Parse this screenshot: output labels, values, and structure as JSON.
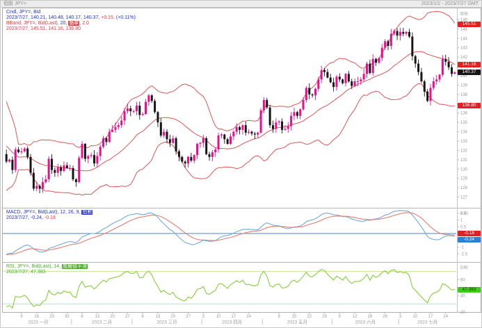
{
  "window": {
    "title_left": "個股 JPY=",
    "title_right": "2023/1/2 - 2023/7/27 GMT"
  },
  "panels": {
    "main": {
      "axis_label": "價格"
    },
    "macd": {
      "axis_label": "自動"
    },
    "rsi": {
      "axis_label": "自動"
    }
  },
  "legend_main": [
    [
      {
        "t": "Cndl, JPY=, Bid",
        "c": "blue"
      }
    ],
    [
      {
        "t": "2023/7/27, 140.21, 140.48, 140.17, 140.37, ",
        "c": "blue"
      },
      {
        "t": "+0.15, ",
        "c": "red"
      },
      {
        "t": "(+0.11%)",
        "c": "blue"
      }
    ],
    [
      {
        "t": "BBand, JPY=, Bid(Last), ",
        "c": "red"
      },
      {
        "t": "20, ",
        "c": "blue"
      },
      {
        "t": "簡單",
        "c": "red",
        "chip": true
      },
      {
        "t": ", 2.0",
        "c": "red"
      }
    ],
    [
      {
        "t": "2023/7/27, 145.51, 141.16, 136.80",
        "c": "red"
      }
    ]
  ],
  "legend_macd": [
    [
      {
        "t": "MACD, JPY=, Bid(Last), 12, 26, 9, ",
        "c": "blue"
      },
      {
        "t": "指數",
        "c": "blue",
        "chip": true
      }
    ],
    [
      {
        "t": "2023/7/27, -0.24, ",
        "c": "blue"
      },
      {
        "t": "-0.18",
        "c": "red"
      }
    ]
  ],
  "legend_rsi": [
    [
      {
        "t": "RSI, JPY=, Bid(Last), 14, ",
        "c": "green"
      },
      {
        "t": "威爾德平滑",
        "c": "green",
        "chip": true
      }
    ],
    [
      {
        "t": "2023/7/27, 47.383",
        "c": "green"
      }
    ]
  ],
  "badges": {
    "main": [
      {
        "name": "badge-bb-upper",
        "text": "145.51",
        "value": 145.51,
        "bg": "badge_red",
        "fg": "#ffffff"
      },
      {
        "name": "badge-bb-middle",
        "text": "141.16",
        "value": 141.16,
        "bg": "badge_red",
        "fg": "#ffffff"
      },
      {
        "name": "badge-last-price",
        "text": "140.37",
        "value": 140.37,
        "bg": "badge_black",
        "fg": "#ffffff"
      },
      {
        "name": "badge-bb-lower",
        "text": "136.80",
        "value": 136.8,
        "bg": "badge_red",
        "fg": "#ffffff"
      }
    ],
    "macd": [
      {
        "name": "badge-macd-signal",
        "text": "-0.18",
        "value": -0.18,
        "bg": "badge_red",
        "fg": "#ffffff",
        "stack": -1
      },
      {
        "name": "badge-macd-line",
        "text": "-0.24",
        "value": -0.24,
        "bg": "badge_blue",
        "fg": "#ffffff",
        "stack": 1
      }
    ],
    "rsi": [
      {
        "name": "badge-rsi",
        "text": "47.383",
        "value": 47.383,
        "bg": "badge_green",
        "fg": "#0d3a06"
      }
    ]
  },
  "colors": {
    "up": "#ea0e8c",
    "down": "#161616",
    "bband": "#e15555",
    "macd": "#74a9dc",
    "signal": "#e57d6e",
    "zero_line": "#4a86c8",
    "rsi": "#86cf3a",
    "rsi_levels": "#c2e59a",
    "badge_red": "#e32020",
    "badge_black": "#151515",
    "badge_blue": "#2f7ed8",
    "badge_green": "#3ecb17",
    "text_grey": "#999999",
    "axis_label_grey": "#b0b0b0",
    "legend_blue": "#2233cc",
    "legend_red": "#d84040",
    "legend_green": "#4ca92c"
  },
  "chart_data": [
    {
      "type": "candlestick",
      "title": "Cndl JPY= Bid with BBand(20, simple, 2.0)",
      "ylabel": "價格",
      "ylim": [
        126.0,
        147.0
      ],
      "ytick_step": 1,
      "x_months": [
        {
          "label": "2023 一月",
          "days": 22
        },
        {
          "label": "2023 二月",
          "days": 20
        },
        {
          "label": "2023 三月",
          "days": 23
        },
        {
          "label": "2023 四月",
          "days": 20
        },
        {
          "label": "2023 五月",
          "days": 23
        },
        {
          "label": "2023 六月",
          "days": 22
        },
        {
          "label": "2023 七月",
          "days": 19
        }
      ],
      "monday_ticks": [
        {
          "d": "9",
          "i": 5
        },
        {
          "d": "16",
          "i": 10
        },
        {
          "d": "23",
          "i": 15
        },
        {
          "d": "30",
          "i": 20
        },
        {
          "d": "6",
          "i": 25
        },
        {
          "d": "13",
          "i": 30
        },
        {
          "d": "20",
          "i": 35
        },
        {
          "d": "27",
          "i": 40
        },
        {
          "d": "6",
          "i": 45
        },
        {
          "d": "13",
          "i": 50
        },
        {
          "d": "20",
          "i": 55
        },
        {
          "d": "27",
          "i": 60
        },
        {
          "d": "3",
          "i": 65
        },
        {
          "d": "10",
          "i": 70
        },
        {
          "d": "17",
          "i": 75
        },
        {
          "d": "24",
          "i": 80
        },
        {
          "d": "8",
          "i": 90
        },
        {
          "d": "15",
          "i": 95
        },
        {
          "d": "22",
          "i": 100
        },
        {
          "d": "29",
          "i": 105
        },
        {
          "d": "5",
          "i": 110
        },
        {
          "d": "12",
          "i": 115
        },
        {
          "d": "19",
          "i": 120
        },
        {
          "d": "26",
          "i": 125
        },
        {
          "d": "3",
          "i": 130
        },
        {
          "d": "10",
          "i": 135
        },
        {
          "d": "17",
          "i": 140
        },
        {
          "d": "24",
          "i": 145
        }
      ],
      "first_open": 131.6,
      "warmup_closes": [
        137.6,
        137.1,
        136.8,
        136.9,
        131.9,
        131.4,
        132.6,
        131.8,
        132.0,
        132.4,
        131.1,
        130.5,
        131.2,
        130.6,
        131.0,
        130.8,
        131.3,
        130.7,
        130.9
      ],
      "closes": [
        130.8,
        131.0,
        129.9,
        132.1,
        131.8,
        131.9,
        132.2,
        131.3,
        129.6,
        127.9,
        128.2,
        127.9,
        128.6,
        128.9,
        131.1,
        129.9,
        129.6,
        130.2,
        129.8,
        130.4,
        130.1,
        130.1,
        128.9,
        128.6,
        131.2,
        132.7,
        131.1,
        131.4,
        131.5,
        130.6,
        131.4,
        132.4,
        133.3,
        132.9,
        134.0,
        134.2,
        134.5,
        134.7,
        135.2,
        136.2,
        136.5,
        136.2,
        136.2,
        136.8,
        135.8,
        135.9,
        137.2,
        137.9,
        137.3,
        136.1,
        135.0,
        133.6,
        134.0,
        133.2,
        132.8,
        133.3,
        131.9,
        131.3,
        130.8,
        130.6,
        131.3,
        130.9,
        131.5,
        132.7,
        132.8,
        133.3,
        131.6,
        131.3,
        131.8,
        132.1,
        133.6,
        133.7,
        133.2,
        132.7,
        133.5,
        134.0,
        134.5,
        134.2,
        134.7,
        133.9,
        134.0,
        133.8,
        133.7,
        133.9,
        136.3,
        137.4,
        136.6,
        134.7,
        134.3,
        135.0,
        135.1,
        134.2,
        134.3,
        134.6,
        135.7,
        136.1,
        135.7,
        136.4,
        137.4,
        138.7,
        138.0,
        137.9,
        138.6,
        139.6,
        140.6,
        140.4,
        139.8,
        139.3,
        138.8,
        139.9,
        139.6,
        139.2,
        140.2,
        139.4,
        138.9,
        139.4,
        139.4,
        139.6,
        140.2,
        141.3,
        140.3,
        141.8,
        141.4,
        141.9,
        143.0,
        143.7,
        143.2,
        144.5,
        144.8,
        144.3,
        144.7,
        144.5,
        144.7,
        144.2,
        142.1,
        141.3,
        140.4,
        139.4,
        138.3,
        137.3,
        138.7,
        139.4,
        139.6,
        140.1,
        141.8,
        141.5,
        140.9,
        140.2,
        140.37
      ],
      "last_ohlc": {
        "open": 140.21,
        "high": 140.48,
        "low": 140.17,
        "close": 140.37,
        "change": "+0.15",
        "change_pct": "(+0.11%)"
      },
      "bollinger": {
        "period": 20,
        "ma_type": "簡單",
        "stdev": 2.0,
        "last_upper": 145.51,
        "last_middle": 141.16,
        "last_lower": 136.8
      }
    },
    {
      "type": "line",
      "name": "MACD",
      "params": [
        12,
        26,
        9
      ],
      "ma_type": "指數",
      "derived_from": "candles.closes",
      "ylim": [
        -2.0,
        1.8
      ],
      "tick_step": 0.5,
      "last_values": {
        "macd": -0.24,
        "signal": -0.18
      }
    },
    {
      "type": "line",
      "name": "RSI",
      "params": [
        14
      ],
      "smoothing": "威爾德平滑",
      "derived_from": "candles.closes",
      "ylim": [
        20,
        80
      ],
      "ticks": [
        60,
        40,
        20
      ],
      "levels": [
        70,
        30
      ],
      "last_value": 47.383
    }
  ]
}
